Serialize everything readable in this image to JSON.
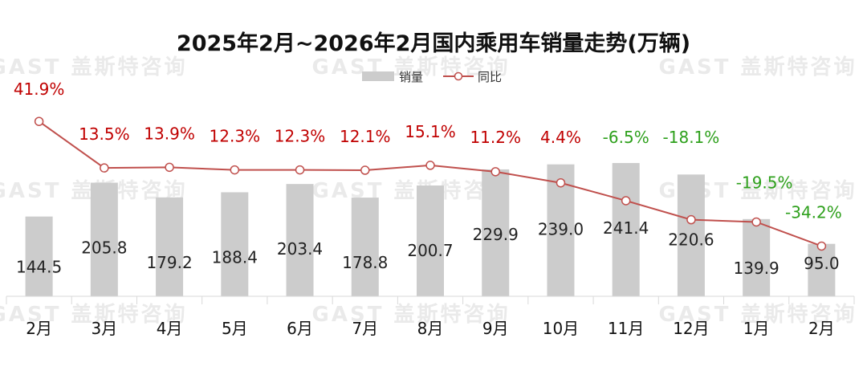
{
  "watermark": "GAST 盖斯特咨询",
  "chart_data": {
    "type": "bar",
    "title": "2025年2月~2026年2月国内乘用车销量走势(万辆)",
    "categories": [
      "2月",
      "3月",
      "4月",
      "5月",
      "6月",
      "7月",
      "8月",
      "9月",
      "10月",
      "11月",
      "12月",
      "1月",
      "2月"
    ],
    "series": [
      {
        "name": "销量",
        "type": "bar",
        "color": "#cccccc",
        "values": [
          144.5,
          205.8,
          179.2,
          188.4,
          203.4,
          178.8,
          200.7,
          229.9,
          239.0,
          241.4,
          220.6,
          139.9,
          95.0
        ],
        "labels": [
          "144.5",
          "205.8",
          "179.2",
          "188.4",
          "203.4",
          "178.8",
          "200.7",
          "229.9",
          "239.0",
          "241.4",
          "220.6",
          "139.9",
          "95.0"
        ]
      },
      {
        "name": "同比",
        "type": "line",
        "color": "#c0504d",
        "values": [
          41.9,
          13.5,
          13.9,
          12.3,
          12.3,
          12.1,
          15.1,
          11.2,
          4.4,
          -6.5,
          -18.1,
          -19.5,
          -34.2
        ],
        "labels": [
          "41.9%",
          "13.5%",
          "13.9%",
          "12.3%",
          "12.3%",
          "12.1%",
          "15.1%",
          "11.2%",
          "4.4%",
          "-6.5%",
          "-18.1%",
          "-19.5%",
          "-34.2%"
        ]
      }
    ],
    "colors": {
      "positive": "#c00000",
      "negative": "#2ea01c"
    },
    "legend_position": "top-center",
    "grid": false
  }
}
